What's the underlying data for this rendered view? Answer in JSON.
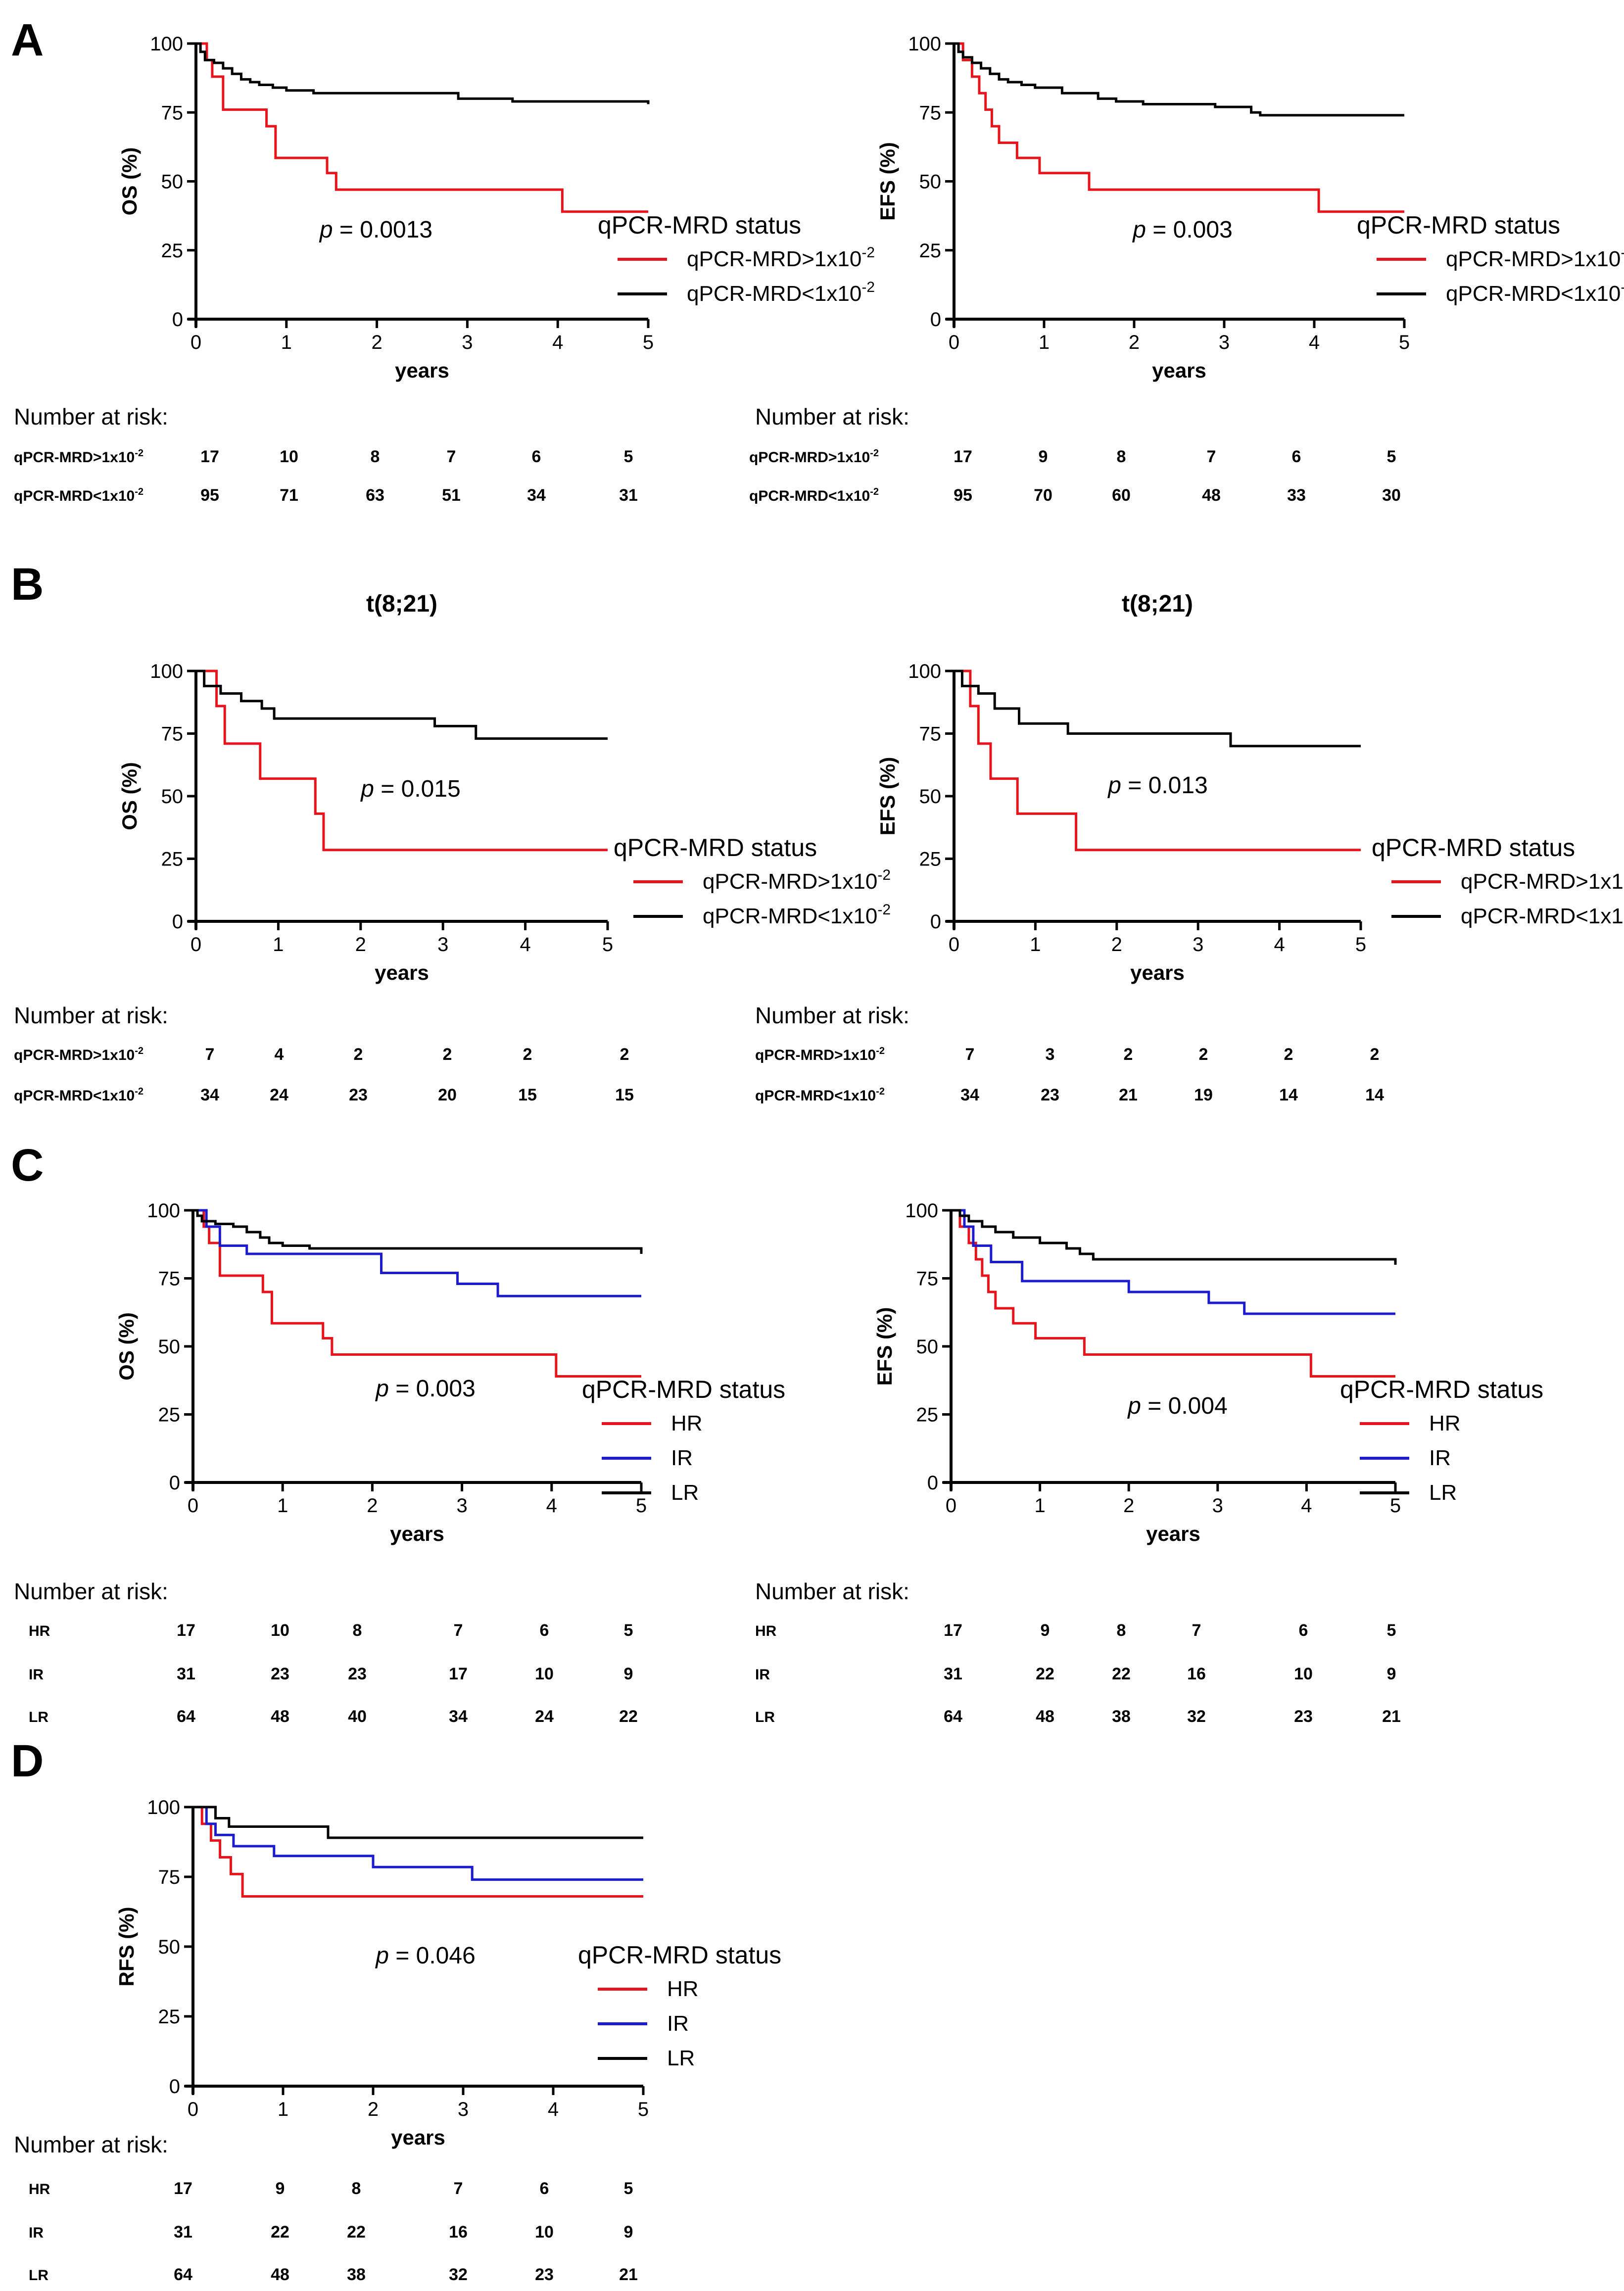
{
  "panels": [
    {
      "letter": "A"
    },
    {
      "letter": "B"
    },
    {
      "letter": "C"
    },
    {
      "letter": "D"
    }
  ],
  "risk_heading": "Number at risk:",
  "chart_data": [
    {
      "panel": "A",
      "type": "line",
      "step": true,
      "title": "",
      "xlabel": "years",
      "ylabel": "OS (%)",
      "xlim": [
        0,
        5
      ],
      "ylim": [
        0,
        100
      ],
      "xticks": [
        0,
        1,
        2,
        3,
        4,
        5
      ],
      "yticks": [
        0,
        25,
        50,
        75,
        100
      ],
      "p_prefix": "p",
      "p_value": "= 0.0013",
      "legend_title": "qPCR-MRD status",
      "series": [
        {
          "name": "qPCR-MRD>1x10",
          "name_sup": "-2",
          "color": "#e8141c",
          "x": [
            0,
            0.12,
            0.18,
            0.3,
            0.78,
            0.88,
            1.45,
            1.55,
            4.05,
            5
          ],
          "y": [
            100,
            94,
            88,
            76,
            70,
            58.5,
            53,
            47,
            39,
            39
          ]
        },
        {
          "name": "qPCR-MRD<1x10",
          "name_sup": "-2",
          "color": "#000000",
          "x": [
            0,
            0.05,
            0.1,
            0.2,
            0.3,
            0.4,
            0.5,
            0.6,
            0.7,
            0.85,
            1.0,
            1.3,
            2.9,
            3.5,
            5
          ],
          "y": [
            100,
            97,
            94,
            93,
            91,
            89,
            87,
            86,
            85,
            84,
            83,
            82,
            80,
            79,
            78
          ]
        }
      ],
      "risk_table": {
        "rows": [
          {
            "label": "qPCR-MRD>1x10",
            "label_sup": "-2",
            "values": [
              "17",
              "10",
              "8",
              "7",
              "6",
              "5"
            ]
          },
          {
            "label": "qPCR-MRD<1x10",
            "label_sup": "-2",
            "values": [
              "95",
              "71",
              "63",
              "51",
              "34",
              "31"
            ]
          }
        ]
      }
    },
    {
      "panel": "A",
      "type": "line",
      "step": true,
      "title": "",
      "xlabel": "years",
      "ylabel": "EFS (%)",
      "xlim": [
        0,
        5
      ],
      "ylim": [
        0,
        100
      ],
      "xticks": [
        0,
        1,
        2,
        3,
        4,
        5
      ],
      "yticks": [
        0,
        25,
        50,
        75,
        100
      ],
      "p_prefix": "p",
      "p_value": "= 0.003",
      "legend_title": "qPCR-MRD status",
      "series": [
        {
          "name": "qPCR-MRD>1x10",
          "name_sup": "-2",
          "color": "#e8141c",
          "x": [
            0,
            0.1,
            0.2,
            0.28,
            0.35,
            0.42,
            0.5,
            0.7,
            0.95,
            1.5,
            4.05,
            5
          ],
          "y": [
            100,
            94,
            88,
            82,
            76,
            70,
            64,
            58.5,
            53,
            47,
            39,
            39
          ]
        },
        {
          "name": "qPCR-MRD<1x10",
          "name_sup": "-2",
          "color": "#000000",
          "x": [
            0,
            0.05,
            0.1,
            0.2,
            0.3,
            0.4,
            0.5,
            0.6,
            0.75,
            0.9,
            1.2,
            1.6,
            1.8,
            2.1,
            2.9,
            3.3,
            3.4,
            5
          ],
          "y": [
            100,
            97,
            95,
            93,
            91,
            89,
            87,
            86,
            85,
            84,
            82,
            80,
            79,
            78,
            77,
            75,
            74,
            74
          ]
        }
      ],
      "risk_table": {
        "rows": [
          {
            "label": "qPCR-MRD>1x10",
            "label_sup": "-2",
            "values": [
              "17",
              "9",
              "8",
              "7",
              "6",
              "5"
            ]
          },
          {
            "label": "qPCR-MRD<1x10",
            "label_sup": "-2",
            "values": [
              "95",
              "70",
              "60",
              "48",
              "33",
              "30"
            ]
          }
        ]
      }
    },
    {
      "panel": "B",
      "type": "line",
      "step": true,
      "title": "t(8;21)",
      "xlabel": "years",
      "ylabel": "OS (%)",
      "xlim": [
        0,
        5
      ],
      "ylim": [
        0,
        100
      ],
      "xticks": [
        0,
        1,
        2,
        3,
        4,
        5
      ],
      "yticks": [
        0,
        25,
        50,
        75,
        100
      ],
      "p_prefix": "p",
      "p_value": "= 0.015",
      "legend_title": "qPCR-MRD status",
      "series": [
        {
          "name": "qPCR-MRD>1x10",
          "name_sup": "-2",
          "color": "#e8141c",
          "x": [
            0,
            0.25,
            0.35,
            0.78,
            1.45,
            1.55,
            5
          ],
          "y": [
            100,
            86,
            71,
            57,
            43,
            28.5,
            28.5
          ]
        },
        {
          "name": "qPCR-MRD<1x10",
          "name_sup": "-2",
          "color": "#000000",
          "x": [
            0,
            0.1,
            0.3,
            0.55,
            0.8,
            0.95,
            2.9,
            3.4,
            5
          ],
          "y": [
            100,
            94,
            91,
            88,
            85,
            81,
            78,
            73,
            73
          ]
        }
      ],
      "risk_table": {
        "rows": [
          {
            "label": "qPCR-MRD>1x10",
            "label_sup": "-2",
            "values": [
              "7",
              "4",
              "2",
              "2",
              "2",
              "2"
            ]
          },
          {
            "label": "qPCR-MRD<1x10",
            "label_sup": "-2",
            "values": [
              "34",
              "24",
              "23",
              "20",
              "15",
              "15"
            ]
          }
        ]
      }
    },
    {
      "panel": "B",
      "type": "line",
      "step": true,
      "title": "t(8;21)",
      "xlabel": "years",
      "ylabel": "EFS (%)",
      "xlim": [
        0,
        5
      ],
      "ylim": [
        0,
        100
      ],
      "xticks": [
        0,
        1,
        2,
        3,
        4,
        5
      ],
      "yticks": [
        0,
        25,
        50,
        75,
        100
      ],
      "p_prefix": "p",
      "p_value": "= 0.013",
      "legend_title": "qPCR-MRD status",
      "series": [
        {
          "name": "qPCR-MRD>1x10",
          "name_sup": "-2",
          "color": "#e8141c",
          "x": [
            0,
            0.2,
            0.3,
            0.45,
            0.78,
            1.5,
            5
          ],
          "y": [
            100,
            86,
            71,
            57,
            43,
            28.5,
            28.5
          ]
        },
        {
          "name": "qPCR-MRD<1x10",
          "name_sup": "-2",
          "color": "#000000",
          "x": [
            0,
            0.1,
            0.3,
            0.5,
            0.8,
            1.4,
            3.4,
            5
          ],
          "y": [
            100,
            94,
            91,
            85,
            79,
            75,
            70,
            70
          ]
        }
      ],
      "risk_table": {
        "rows": [
          {
            "label": "qPCR-MRD>1x10",
            "label_sup": "-2",
            "values": [
              "7",
              "3",
              "2",
              "2",
              "2",
              "2"
            ]
          },
          {
            "label": "qPCR-MRD<1x10",
            "label_sup": "-2",
            "values": [
              "34",
              "23",
              "21",
              "19",
              "14",
              "14"
            ]
          }
        ]
      }
    },
    {
      "panel": "C",
      "type": "line",
      "step": true,
      "title": "",
      "xlabel": "years",
      "ylabel": "OS (%)",
      "xlim": [
        0,
        5
      ],
      "ylim": [
        0,
        100
      ],
      "xticks": [
        0,
        1,
        2,
        3,
        4,
        5
      ],
      "yticks": [
        0,
        25,
        50,
        75,
        100
      ],
      "p_prefix": "p",
      "p_value": "= 0.003",
      "legend_title": "qPCR-MRD status",
      "series": [
        {
          "name": "HR",
          "color": "#e8141c",
          "x": [
            0,
            0.12,
            0.18,
            0.3,
            0.78,
            0.88,
            1.45,
            1.55,
            4.05,
            5
          ],
          "y": [
            100,
            94,
            88,
            76,
            70,
            58.5,
            53,
            47,
            39,
            39
          ]
        },
        {
          "name": "IR",
          "color": "#1c1ccc",
          "x": [
            0,
            0.15,
            0.3,
            0.6,
            2.1,
            2.95,
            3.4,
            5
          ],
          "y": [
            100,
            94,
            87,
            84,
            77,
            73,
            68.5,
            68.5
          ]
        },
        {
          "name": "LR",
          "color": "#000000",
          "x": [
            0,
            0.05,
            0.1,
            0.25,
            0.45,
            0.6,
            0.75,
            0.85,
            1.0,
            1.3,
            5
          ],
          "y": [
            100,
            98,
            96,
            95,
            94,
            92,
            90,
            88,
            87,
            86,
            84
          ]
        }
      ],
      "risk_table": {
        "rows": [
          {
            "label": "HR",
            "values": [
              "17",
              "10",
              "8",
              "7",
              "6",
              "5"
            ]
          },
          {
            "label": "IR",
            "values": [
              "31",
              "23",
              "23",
              "17",
              "10",
              "9"
            ]
          },
          {
            "label": "LR",
            "values": [
              "64",
              "48",
              "40",
              "34",
              "24",
              "22"
            ]
          }
        ]
      }
    },
    {
      "panel": "C",
      "type": "line",
      "step": true,
      "title": "",
      "xlabel": "years",
      "ylabel": "EFS (%)",
      "xlim": [
        0,
        5
      ],
      "ylim": [
        0,
        100
      ],
      "xticks": [
        0,
        1,
        2,
        3,
        4,
        5
      ],
      "yticks": [
        0,
        25,
        50,
        75,
        100
      ],
      "p_prefix": "p",
      "p_value": "= 0.004",
      "legend_title": "qPCR-MRD status",
      "series": [
        {
          "name": "HR",
          "color": "#e8141c",
          "x": [
            0,
            0.1,
            0.2,
            0.28,
            0.35,
            0.42,
            0.5,
            0.7,
            0.95,
            1.5,
            4.05,
            5
          ],
          "y": [
            100,
            94,
            88,
            82,
            76,
            70,
            64,
            58.5,
            53,
            47,
            39,
            39
          ]
        },
        {
          "name": "IR",
          "color": "#1c1ccc",
          "x": [
            0,
            0.15,
            0.25,
            0.45,
            0.8,
            2.0,
            2.9,
            3.3,
            5
          ],
          "y": [
            100,
            94,
            87,
            81,
            74,
            70,
            66,
            62,
            62
          ]
        },
        {
          "name": "LR",
          "color": "#000000",
          "x": [
            0,
            0.1,
            0.2,
            0.35,
            0.5,
            0.7,
            1.0,
            1.3,
            1.45,
            1.6,
            5
          ],
          "y": [
            100,
            98,
            96,
            94,
            92,
            90,
            88,
            86,
            84,
            82,
            80
          ]
        }
      ],
      "risk_table": {
        "rows": [
          {
            "label": "HR",
            "values": [
              "17",
              "9",
              "8",
              "7",
              "6",
              "5"
            ]
          },
          {
            "label": "IR",
            "values": [
              "31",
              "22",
              "22",
              "16",
              "10",
              "9"
            ]
          },
          {
            "label": "LR",
            "values": [
              "64",
              "48",
              "38",
              "32",
              "23",
              "21"
            ]
          }
        ]
      }
    },
    {
      "panel": "D",
      "type": "line",
      "step": true,
      "title": "",
      "xlabel": "years",
      "ylabel": "RFS (%)",
      "xlim": [
        0,
        5
      ],
      "ylim": [
        0,
        100
      ],
      "xticks": [
        0,
        1,
        2,
        3,
        4,
        5
      ],
      "yticks": [
        0,
        25,
        50,
        75,
        100
      ],
      "p_prefix": "p",
      "p_value": "= 0.046",
      "legend_title": "qPCR-MRD status",
      "series": [
        {
          "name": "HR",
          "color": "#e8141c",
          "x": [
            0,
            0.1,
            0.2,
            0.3,
            0.42,
            0.55,
            5
          ],
          "y": [
            100,
            94,
            88,
            82,
            76,
            68,
            68
          ]
        },
        {
          "name": "IR",
          "color": "#1c1ccc",
          "x": [
            0,
            0.15,
            0.25,
            0.45,
            0.9,
            2.0,
            3.1,
            5
          ],
          "y": [
            100,
            94,
            90,
            86,
            82.5,
            78.5,
            74,
            74
          ]
        },
        {
          "name": "LR",
          "color": "#000000",
          "x": [
            0,
            0.25,
            0.4,
            1.5,
            5
          ],
          "y": [
            100,
            96,
            93,
            89,
            89
          ]
        }
      ],
      "risk_table": {
        "rows": [
          {
            "label": "HR",
            "values": [
              "17",
              "9",
              "8",
              "7",
              "6",
              "5"
            ]
          },
          {
            "label": "IR",
            "values": [
              "31",
              "22",
              "22",
              "16",
              "10",
              "9"
            ]
          },
          {
            "label": "LR",
            "values": [
              "64",
              "48",
              "38",
              "32",
              "23",
              "21"
            ]
          }
        ]
      }
    }
  ]
}
